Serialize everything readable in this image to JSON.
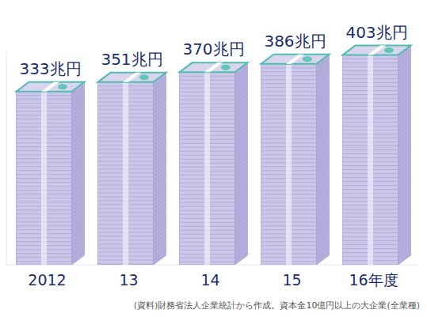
{
  "chart_data": {
    "type": "bar",
    "categories": [
      "2012",
      "13",
      "14",
      "15",
      "16年度"
    ],
    "values": [
      333,
      351,
      370,
      386,
      403
    ],
    "value_labels": [
      "333兆円",
      "351兆円",
      "370兆円",
      "386兆円",
      "403兆円"
    ],
    "data_labels": true,
    "color": "#cbc7e8",
    "ylim": [
      0,
      410
    ],
    "tick_labels": false,
    "grid": false,
    "annotation": "(資料)財務省法人企業統計から作成。資本金10億円以上の大企業(全業種)"
  }
}
